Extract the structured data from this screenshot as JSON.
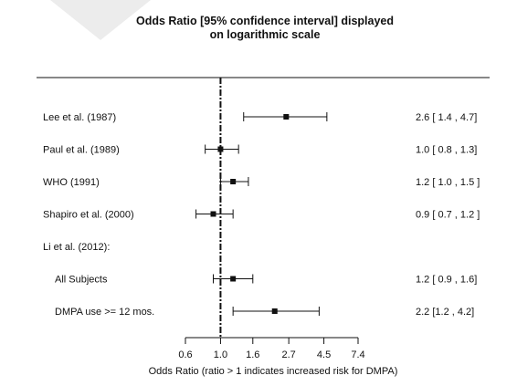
{
  "chart_data": {
    "type": "forest",
    "title_lines": [
      "Odds Ratio [95% confidence interval] displayed",
      "on logarithmic scale"
    ],
    "xlabel": "Odds Ratio (ratio > 1 indicates increased risk for DMPA)",
    "x_scale": "log",
    "xlim": [
      0.6,
      7.4
    ],
    "xticks": [
      0.6,
      1.0,
      1.6,
      2.7,
      4.5,
      7.4
    ],
    "xtick_labels": [
      "0.6",
      "1.0",
      "1.6",
      "2.7",
      "4.5",
      "7.4"
    ],
    "reference_line": 1.0,
    "rows": [
      {
        "label": "Lee et al. (1987)",
        "or": 2.6,
        "lo": 1.4,
        "hi": 4.7,
        "text": "2.6 [ 1.4 , 4.7]",
        "indent": false
      },
      {
        "label": "Paul et al. (1989)",
        "or": 1.0,
        "lo": 0.8,
        "hi": 1.3,
        "text": "1.0 [ 0.8 , 1.3]",
        "indent": false
      },
      {
        "label": "WHO (1991)",
        "or": 1.2,
        "lo": 1.0,
        "hi": 1.5,
        "text": "1.2 [ 1.0 , 1.5 ]",
        "indent": false
      },
      {
        "label": "Shapiro et al. (2000)",
        "or": 0.9,
        "lo": 0.7,
        "hi": 1.2,
        "text": "0.9 [ 0.7 , 1.2 ]",
        "indent": false
      },
      {
        "label": "Li et al. (2012):",
        "or": null,
        "lo": null,
        "hi": null,
        "text": "",
        "indent": false
      },
      {
        "label": "All Subjects",
        "or": 1.2,
        "lo": 0.9,
        "hi": 1.6,
        "text": "1.2 [ 0.9 , 1.6]",
        "indent": true
      },
      {
        "label": "DMPA use >= 12 mos.",
        "or": 2.2,
        "lo": 1.2,
        "hi": 4.2,
        "text": "2.2 [1.2 , 4.2]",
        "indent": true
      }
    ]
  }
}
